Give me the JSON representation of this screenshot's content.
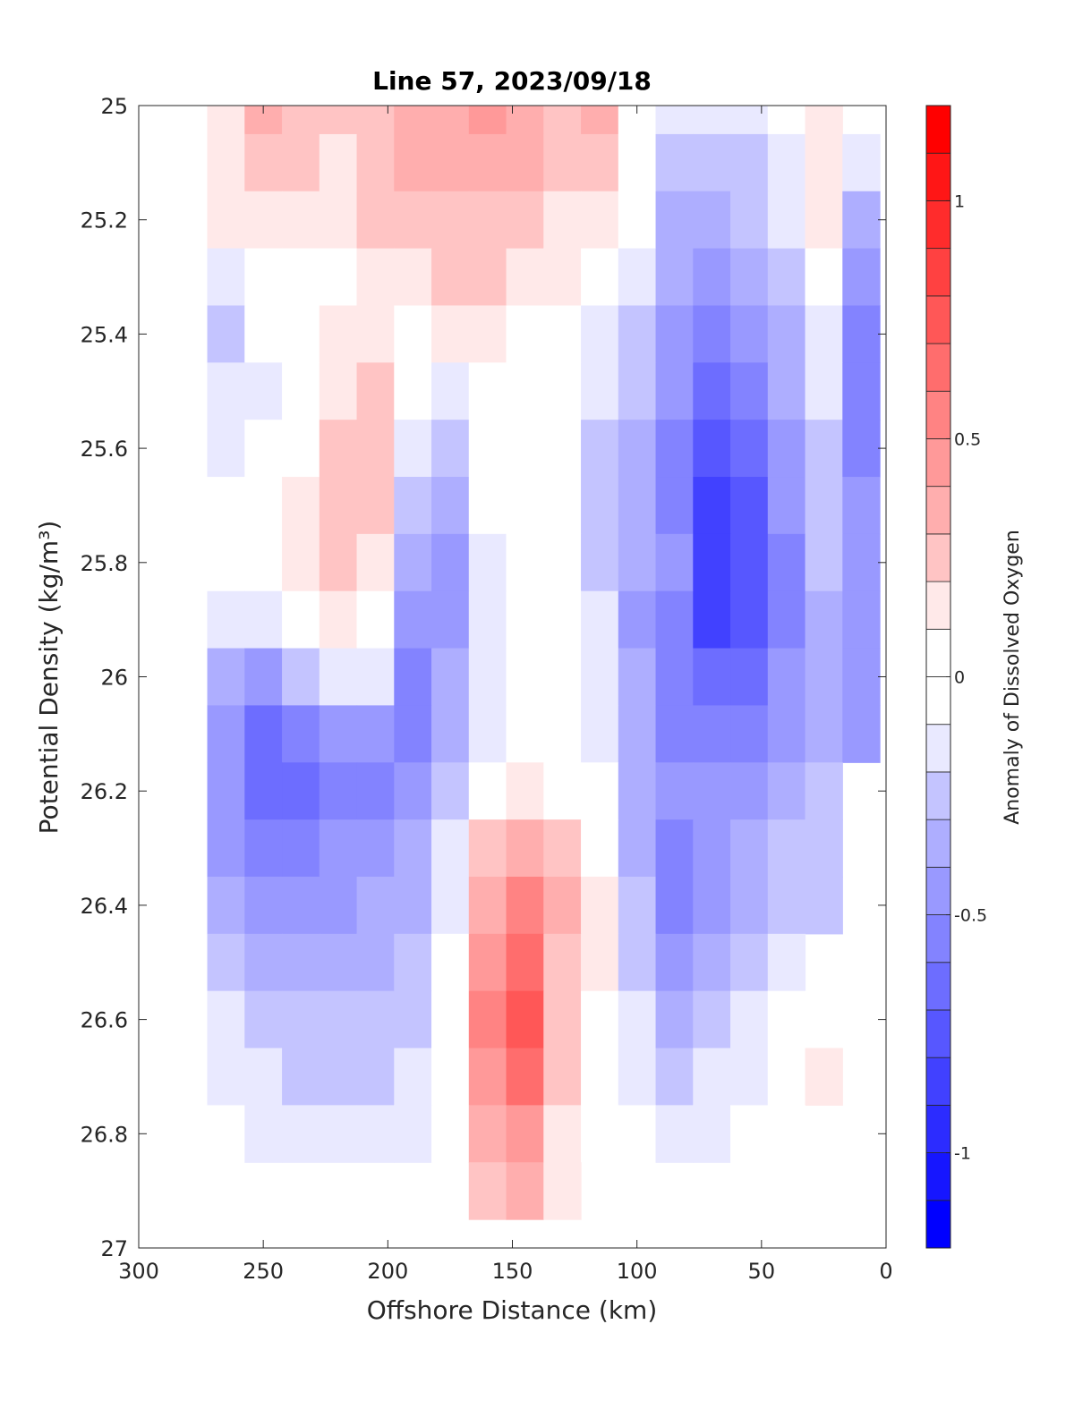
{
  "chart_data": {
    "type": "heatmap",
    "subtype": "filled-contour",
    "title": "Line 57, 2023/09/18",
    "xlabel": "Offshore Distance (km)",
    "ylabel": "Potential Density (kg/m³)",
    "colorbar_label": "Anomaly of Dissolved Oxygen",
    "xlim": [
      300,
      0
    ],
    "ylim": [
      25,
      27
    ],
    "y_reversed": true,
    "x_ticks": [
      "300",
      "250",
      "200",
      "150",
      "100",
      "50",
      "0"
    ],
    "y_ticks": [
      "25",
      "25.2",
      "25.4",
      "25.6",
      "25.8",
      "26",
      "26.2",
      "26.4",
      "26.6",
      "26.8",
      "27"
    ],
    "colorbar_ticks": [
      "1",
      "0.5",
      "0",
      "-0.5",
      "-1"
    ],
    "colorbar_range": [
      -1.2,
      1.2
    ],
    "contour_step": 0.1,
    "colors": {
      "positive": "#ff0000",
      "negative": "#0000ff",
      "neutral": "#ffffff"
    },
    "x": [
      265,
      250,
      235,
      220,
      205,
      190,
      175,
      160,
      145,
      130,
      115,
      100,
      85,
      70,
      55,
      40,
      25,
      10
    ],
    "y": [
      25.0,
      25.1,
      25.2,
      25.3,
      25.4,
      25.5,
      25.6,
      25.7,
      25.8,
      25.9,
      26.0,
      26.1,
      26.2,
      26.3,
      26.4,
      26.5,
      26.6,
      26.7,
      26.8,
      26.9
    ],
    "z": [
      [
        0.15,
        0.3,
        0.25,
        0.25,
        0.2,
        0.3,
        0.35,
        0.4,
        0.35,
        0.25,
        0.3,
        0.05,
        -0.15,
        -0.1,
        -0.12,
        0.0,
        0.15,
        null
      ],
      [
        0.15,
        0.25,
        0.2,
        0.15,
        0.2,
        0.3,
        0.35,
        0.35,
        0.3,
        0.25,
        0.25,
        0.0,
        -0.2,
        -0.25,
        -0.2,
        -0.1,
        0.1,
        -0.1
      ],
      [
        0.1,
        0.12,
        0.1,
        0.15,
        0.2,
        0.25,
        0.25,
        0.25,
        0.2,
        0.15,
        0.12,
        -0.05,
        -0.3,
        -0.35,
        -0.25,
        -0.15,
        0.1,
        -0.3
      ],
      [
        -0.15,
        0.05,
        0.05,
        0.05,
        0.1,
        0.15,
        0.2,
        0.2,
        0.15,
        0.1,
        0.0,
        -0.15,
        -0.35,
        -0.4,
        -0.35,
        -0.2,
        0.0,
        -0.4
      ],
      [
        -0.2,
        -0.05,
        0.0,
        0.12,
        0.1,
        0.05,
        0.1,
        0.15,
        0.05,
        0.0,
        -0.1,
        -0.2,
        -0.4,
        -0.5,
        -0.45,
        -0.3,
        -0.1,
        -0.5
      ],
      [
        -0.15,
        -0.1,
        0.05,
        0.15,
        0.2,
        -0.05,
        -0.15,
        0.05,
        0.0,
        0.0,
        -0.15,
        -0.25,
        -0.45,
        -0.6,
        -0.55,
        -0.35,
        -0.15,
        -0.55
      ],
      [
        -0.12,
        -0.05,
        0.05,
        0.2,
        0.25,
        -0.15,
        -0.2,
        0.0,
        0.0,
        -0.05,
        -0.2,
        -0.3,
        -0.5,
        -0.7,
        -0.65,
        -0.4,
        -0.2,
        -0.5
      ],
      [
        0.0,
        0.0,
        0.1,
        0.25,
        0.2,
        -0.25,
        -0.3,
        -0.05,
        0.0,
        -0.05,
        -0.2,
        -0.35,
        -0.5,
        -0.8,
        -0.7,
        -0.45,
        -0.25,
        -0.45
      ],
      [
        0.0,
        0.05,
        0.1,
        0.2,
        0.15,
        -0.35,
        -0.4,
        -0.1,
        0.0,
        0.0,
        -0.2,
        -0.35,
        -0.45,
        -0.85,
        -0.7,
        -0.5,
        -0.25,
        -0.4
      ],
      [
        -0.1,
        -0.1,
        0.0,
        0.1,
        0.05,
        -0.4,
        -0.4,
        -0.15,
        0.0,
        0.0,
        -0.15,
        -0.4,
        -0.5,
        -0.8,
        -0.7,
        -0.5,
        -0.3,
        -0.4
      ],
      [
        -0.3,
        -0.4,
        -0.25,
        -0.15,
        -0.15,
        -0.5,
        -0.35,
        -0.1,
        0.0,
        0.0,
        -0.15,
        -0.35,
        -0.5,
        -0.65,
        -0.6,
        -0.45,
        -0.35,
        -0.45
      ],
      [
        -0.4,
        -0.6,
        -0.5,
        -0.45,
        -0.45,
        -0.5,
        -0.3,
        -0.1,
        0.0,
        0.0,
        -0.1,
        -0.3,
        -0.5,
        -0.55,
        -0.5,
        -0.4,
        -0.3,
        -0.45
      ],
      [
        -0.45,
        -0.65,
        -0.6,
        -0.55,
        -0.5,
        -0.4,
        -0.25,
        0.0,
        0.15,
        0.05,
        -0.05,
        -0.3,
        -0.45,
        -0.45,
        -0.4,
        -0.3,
        -0.2,
        null
      ],
      [
        -0.4,
        -0.5,
        -0.5,
        -0.45,
        -0.4,
        -0.35,
        -0.15,
        0.2,
        0.35,
        0.2,
        0.0,
        -0.3,
        -0.5,
        -0.45,
        -0.35,
        -0.25,
        -0.2,
        null
      ],
      [
        -0.35,
        -0.4,
        -0.4,
        -0.4,
        -0.35,
        -0.3,
        -0.1,
        0.3,
        0.5,
        0.3,
        0.1,
        -0.25,
        -0.55,
        -0.45,
        -0.3,
        -0.2,
        -0.2,
        null
      ],
      [
        -0.2,
        -0.3,
        -0.3,
        -0.3,
        -0.3,
        -0.2,
        0.0,
        0.45,
        0.65,
        0.25,
        0.1,
        -0.2,
        -0.45,
        -0.35,
        -0.2,
        -0.1,
        null,
        null
      ],
      [
        -0.15,
        -0.2,
        -0.2,
        -0.2,
        -0.2,
        -0.2,
        0.0,
        0.5,
        0.75,
        0.25,
        0.0,
        -0.15,
        -0.35,
        -0.25,
        -0.15,
        0.0,
        0.05,
        null
      ],
      [
        -0.15,
        -0.15,
        -0.2,
        -0.2,
        -0.2,
        -0.15,
        0.0,
        0.45,
        0.6,
        0.2,
        0.0,
        -0.1,
        -0.2,
        -0.15,
        -0.1,
        0.0,
        0.1,
        null
      ],
      [
        -0.05,
        -0.1,
        -0.1,
        -0.1,
        -0.15,
        -0.1,
        0.0,
        0.3,
        0.4,
        0.15,
        0.0,
        -0.05,
        -0.1,
        -0.1,
        -0.05,
        -0.05,
        null,
        null
      ],
      [
        null,
        null,
        null,
        null,
        null,
        null,
        null,
        0.2,
        0.3,
        0.15,
        null,
        null,
        null,
        null,
        null,
        null,
        null,
        null
      ]
    ]
  }
}
